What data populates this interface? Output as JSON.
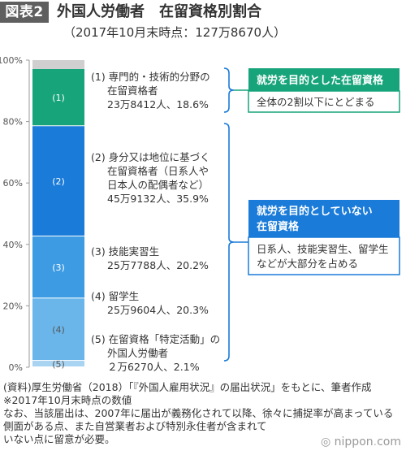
{
  "header": {
    "tag": "図表2",
    "title": "外国人労働者　在留資格別割合",
    "subtitle": "（2017年10月末時点：127万8670人）"
  },
  "chart_data": {
    "type": "bar",
    "stacked": true,
    "ylim": [
      0,
      100
    ],
    "yticks": [
      "0%",
      "20%",
      "40%",
      "60%",
      "80%",
      "100%"
    ],
    "segments": [
      {
        "label": "(5)",
        "value": 2.1,
        "color": "#a8d4f2",
        "desc": [
          "(5)  在留資格「特定活動」の",
          "外国人労働者"
        ],
        "count": "２万6270人、2.1%"
      },
      {
        "label": "(4)",
        "value": 20.3,
        "color": "#6ab6ea",
        "desc": [
          "(4)  留学生"
        ],
        "count": "25万9604人、20.3%"
      },
      {
        "label": "(3)",
        "value": 20.2,
        "color": "#3d9be3",
        "desc": [
          "(3)  技能実習生"
        ],
        "count": "25万7788人、20.2%"
      },
      {
        "label": "(2)",
        "value": 35.9,
        "color": "#1a7bd9",
        "desc": [
          "(2)  身分又は地位に基づく",
          "在留資格者（日系人や",
          "日本人の配偶者など）"
        ],
        "count": "45万9132人、35.9%"
      },
      {
        "label": "(1)",
        "value": 18.6,
        "color": "#17a47a",
        "desc": [
          "(1)  専門的・技術的分野の",
          "在留資格者"
        ],
        "count": "23万8412人、18.6%"
      }
    ],
    "remainder_color": "#cfcfcf"
  },
  "callouts": [
    {
      "head": "就労を目的とした在留資格",
      "body": [
        "全体の2割以下にとどまる"
      ],
      "color": "#17a47a"
    },
    {
      "head": "就労を目的としていない",
      "head2": "在留資格",
      "body": [
        "日系人、技能実習生、留学生",
        "などが大部分を占める"
      ],
      "color": "#1a7bd9"
    }
  ],
  "notes": [
    "(資料)厚生労働省（2018）「『外国人雇用状況』の届出状況」をもとに、筆者作成",
    "※2017年10月末時点の数値",
    "なお、当該届出は、2007年に届出が義務化されて以降、徐々に捕捉率が高まっている",
    "側面がある点、また自営業者および特別永住者が含まれて",
    "いない点に留意が必要。"
  ],
  "brand": {
    "prefix": "◎",
    "name": "nippon",
    "dot": ".",
    "suffix": "com"
  }
}
